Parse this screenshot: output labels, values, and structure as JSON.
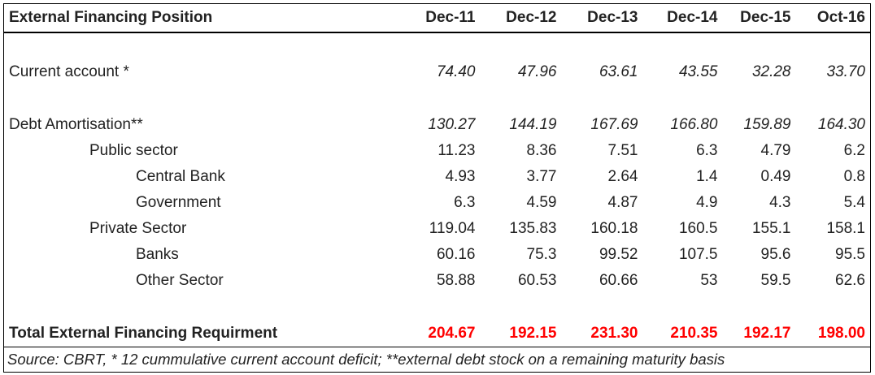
{
  "table": {
    "title": "External Financing Position",
    "columns": [
      "Dec-11",
      "Dec-12",
      "Dec-13",
      "Dec-14",
      "Dec-15",
      "Oct-16"
    ],
    "current_account": {
      "label": "Current account *",
      "values": [
        "74.40",
        "47.96",
        "63.61",
        "43.55",
        "32.28",
        "33.70"
      ]
    },
    "debt_amortisation": {
      "label": "Debt Amortisation**",
      "values": [
        "130.27",
        "144.19",
        "167.69",
        "166.80",
        "159.89",
        "164.30"
      ]
    },
    "public_sector": {
      "label": "Public sector",
      "values": [
        "11.23",
        "8.36",
        "7.51",
        "6.3",
        "4.79",
        "6.2"
      ]
    },
    "central_bank": {
      "label": "Central Bank",
      "values": [
        "4.93",
        "3.77",
        "2.64",
        "1.4",
        "0.49",
        "0.8"
      ]
    },
    "government": {
      "label": "Government",
      "values": [
        "6.3",
        "4.59",
        "4.87",
        "4.9",
        "4.3",
        "5.4"
      ]
    },
    "private_sector": {
      "label": "Private Sector",
      "values": [
        "119.04",
        "135.83",
        "160.18",
        "160.5",
        "155.1",
        "158.1"
      ]
    },
    "banks": {
      "label": "Banks",
      "values": [
        "60.16",
        "75.3",
        "99.52",
        "107.5",
        "95.6",
        "95.5"
      ]
    },
    "other_sector": {
      "label": "Other Sector",
      "values": [
        "58.88",
        "60.53",
        "60.66",
        "53",
        "59.5",
        "62.6"
      ]
    },
    "total": {
      "label": "Total External Financing Requirment",
      "values": [
        "204.67",
        "192.15",
        "231.30",
        "210.35",
        "192.17",
        "198.00"
      ]
    },
    "source_note": "Source: CBRT, * 12 cummulative current account deficit; **external debt stock on a remaining maturity basis",
    "colors": {
      "total_values": "#ff0000",
      "text": "#222222",
      "border": "#000000"
    }
  }
}
